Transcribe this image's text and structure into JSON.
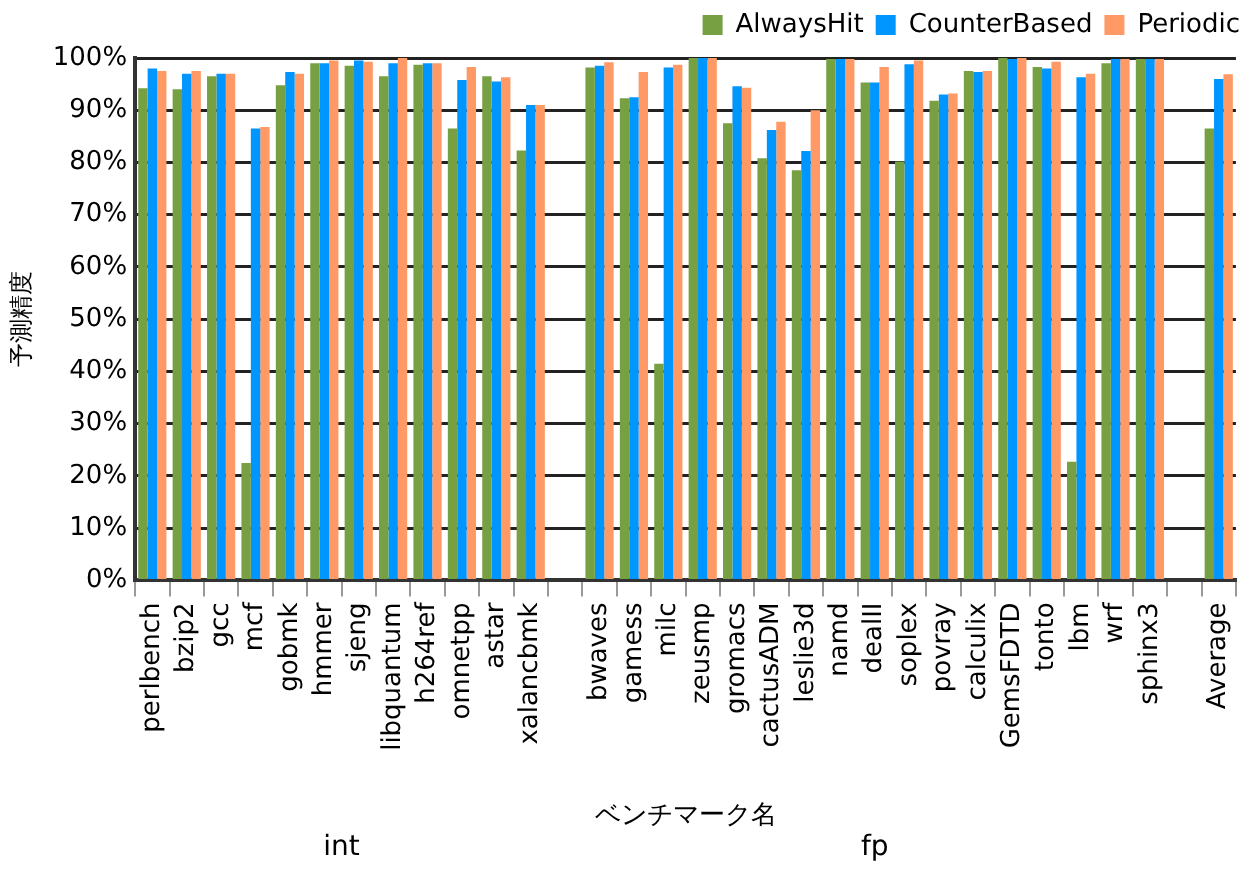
{
  "chart_data": {
    "type": "bar",
    "xlabel": "ベンチマーク名",
    "ylabel": "予測精度",
    "categories": [
      "perlbench",
      "bzip2",
      "gcc",
      "mcf",
      "gobmk",
      "hmmer",
      "sjeng",
      "libquantum",
      "h264ref",
      "omnetpp",
      "astar",
      "xalancbmk",
      null,
      "bwaves",
      "gamess",
      "milc",
      "zeusmp",
      "gromacs",
      "cactusADM",
      "leslie3d",
      "namd",
      "dealII",
      "soplex",
      "povray",
      "calculix",
      "GemsFDTD",
      "tonto",
      "lbm",
      "wrf",
      "sphinx3",
      null,
      "Average"
    ],
    "series": [
      {
        "name": "AlwaysHit",
        "color": "#77a043",
        "values": [
          94.2,
          94,
          96.5,
          22.5,
          94.8,
          99,
          98.5,
          96.5,
          98.7,
          86.5,
          96.5,
          82.3,
          null,
          98.2,
          92.3,
          41.5,
          100,
          87.5,
          80.8,
          78.5,
          99.8,
          95.3,
          80.2,
          91.8,
          97.5,
          100,
          98.3,
          22.7,
          99,
          99.8,
          null,
          86.5
        ]
      },
      {
        "name": "CounterBased",
        "color": "#0096ff",
        "values": [
          98,
          97,
          97,
          86.5,
          97.3,
          99,
          99.5,
          99,
          99,
          95.8,
          95.5,
          91,
          null,
          98.5,
          92.5,
          98.2,
          100,
          94.6,
          86.2,
          82.2,
          99.8,
          95.3,
          98.8,
          93,
          97.3,
          99.8,
          98,
          96.3,
          99.8,
          99.8,
          null,
          96
        ]
      },
      {
        "name": "Periodic",
        "color": "#ff9966",
        "values": [
          97.5,
          97.5,
          97,
          86.8,
          97,
          99.5,
          99.3,
          100,
          99,
          98.3,
          96.3,
          91,
          null,
          99.2,
          97.3,
          98.7,
          100,
          94.3,
          87.8,
          90,
          99.8,
          98.3,
          99.5,
          93.2,
          97.5,
          100,
          99.3,
          97,
          99.8,
          99.8,
          null,
          96.9
        ]
      }
    ],
    "ylim": [
      0,
      100
    ],
    "yticks": [
      {
        "value": 0,
        "label": "0%"
      },
      {
        "value": 10,
        "label": "10%"
      },
      {
        "value": 20,
        "label": "20%"
      },
      {
        "value": 30,
        "label": "30%"
      },
      {
        "value": 40,
        "label": "40%"
      },
      {
        "value": 50,
        "label": "50%"
      },
      {
        "value": 60,
        "label": "60%"
      },
      {
        "value": 70,
        "label": "70%"
      },
      {
        "value": 80,
        "label": "80%"
      },
      {
        "value": 90,
        "label": "90%"
      },
      {
        "value": 100,
        "label": "100%"
      }
    ],
    "grid": "y",
    "legend": "top right",
    "annotations": [
      "int",
      "fp"
    ]
  }
}
